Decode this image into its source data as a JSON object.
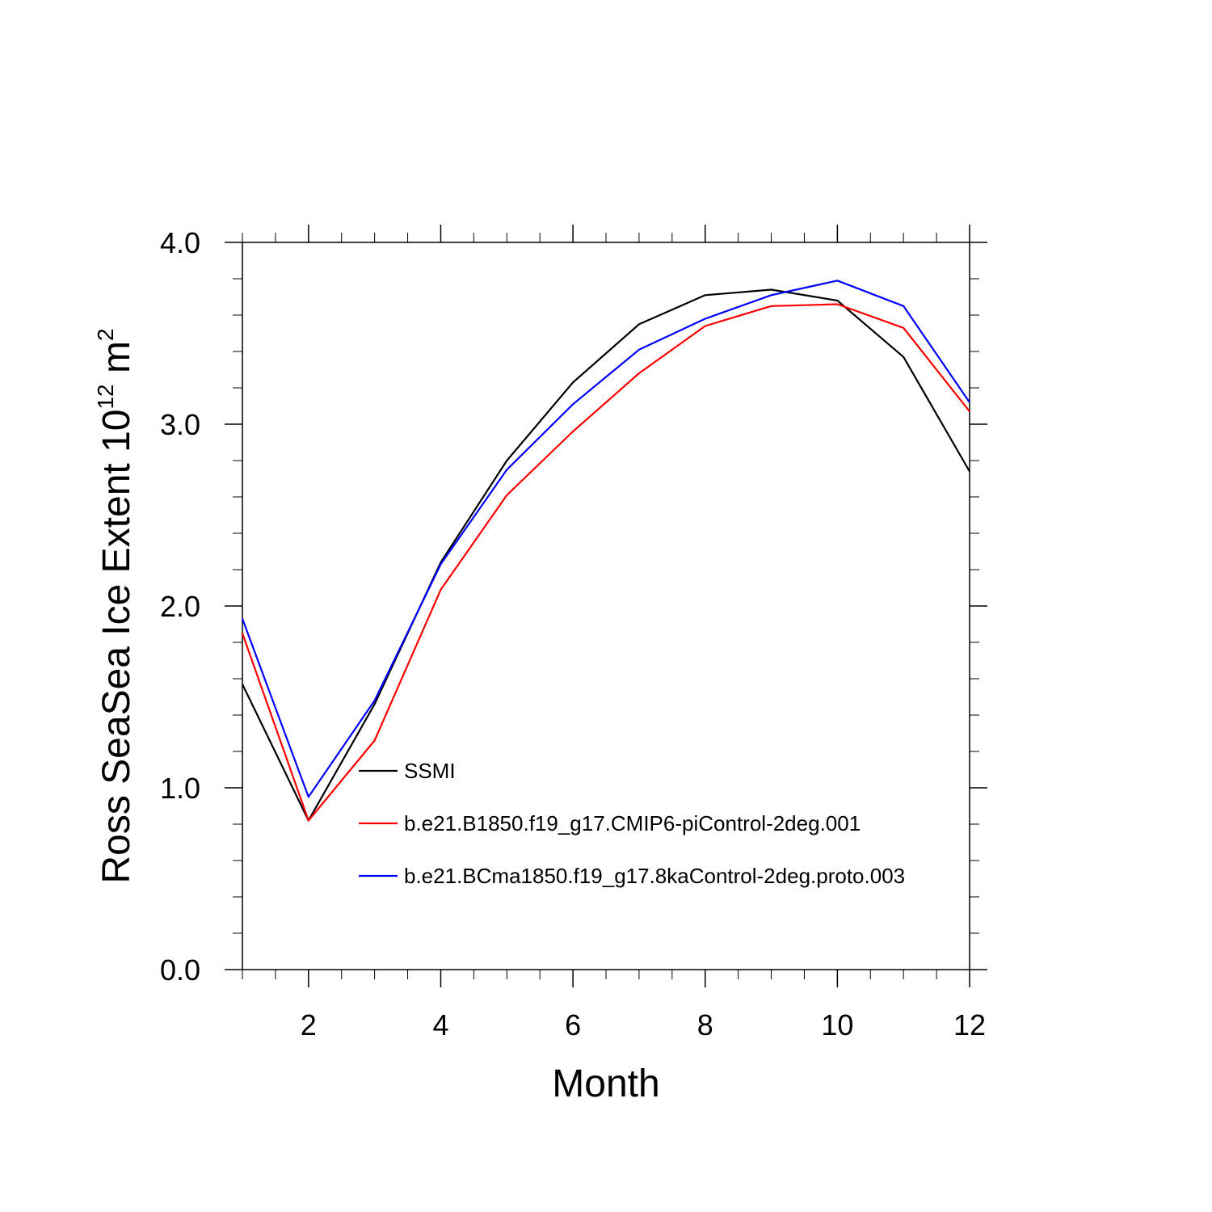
{
  "chart_data": {
    "type": "line",
    "x": [
      1,
      2,
      3,
      4,
      5,
      6,
      7,
      8,
      9,
      10,
      11,
      12
    ],
    "xlabel": "Month",
    "ylabel": {
      "main": "Ross SeaSea Ice Extent 10",
      "exp": "12",
      "unit": " m",
      "unit_exp": "2"
    },
    "xlim": [
      1,
      12
    ],
    "ylim": [
      0,
      4
    ],
    "x_ticks": [
      2,
      4,
      6,
      8,
      10,
      12
    ],
    "x_tick_labels": [
      "2",
      "4",
      "6",
      "8",
      "10",
      "12"
    ],
    "y_ticks": [
      0,
      1,
      2,
      3,
      4
    ],
    "y_tick_labels": [
      "0.0",
      "1.0",
      "2.0",
      "3.0",
      "4.0"
    ],
    "grid": false,
    "legend_position": "inside-lower-center",
    "series": [
      {
        "name": "SSMI",
        "color": "#000000",
        "values": [
          1.57,
          0.82,
          1.46,
          2.24,
          2.8,
          3.23,
          3.55,
          3.71,
          3.74,
          3.68,
          3.37,
          2.74
        ]
      },
      {
        "name": "b.e21.B1850.f19_g17.CMIP6-piControl-2deg.001",
        "color": "#ff0000",
        "values": [
          1.85,
          0.82,
          1.26,
          2.09,
          2.61,
          2.96,
          3.28,
          3.54,
          3.65,
          3.66,
          3.53,
          3.07
        ]
      },
      {
        "name": "b.e21.BCma1850.f19_g17.8kaControl-2deg.proto.003",
        "color": "#0000ff",
        "values": [
          1.93,
          0.95,
          1.48,
          2.23,
          2.75,
          3.11,
          3.41,
          3.58,
          3.71,
          3.79,
          3.65,
          3.12
        ]
      }
    ]
  }
}
